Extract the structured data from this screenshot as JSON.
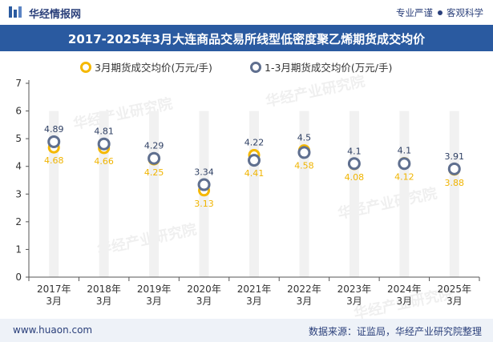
{
  "header": {
    "brand": "华经情报网",
    "tagline_left": "专业严谨",
    "tagline_right": "客观科学"
  },
  "footer": {
    "site": "www.huaon.com",
    "source": "数据来源：证监局，华经产业研究院整理"
  },
  "watermark": "华经产业研究院",
  "colors": {
    "series_a": "#f5b800",
    "series_b": "#5f6f8f",
    "title_bar": "#2a5aa0",
    "band": "#f1f1f1"
  },
  "chart_data": {
    "type": "line",
    "title": "2017-2025年3月大连商品交易所线型低密度聚乙烯期货成交均价",
    "categories": [
      [
        "2017年",
        "3月"
      ],
      [
        "2018年",
        "3月"
      ],
      [
        "2019年",
        "3月"
      ],
      [
        "2020年",
        "3月"
      ],
      [
        "2021年",
        "3月"
      ],
      [
        "2022年",
        "3月"
      ],
      [
        "2023年",
        "3月"
      ],
      [
        "2024年",
        "3月"
      ],
      [
        "2025年",
        "3月"
      ]
    ],
    "series": [
      {
        "name": "3月期货成交均价(万元/手)",
        "values": [
          4.68,
          4.66,
          4.25,
          3.13,
          4.41,
          4.58,
          4.08,
          4.12,
          3.88
        ]
      },
      {
        "name": "1-3月期货成交均价(万元/手)",
        "values": [
          4.89,
          4.81,
          4.29,
          3.34,
          4.22,
          4.5,
          4.1,
          4.1,
          3.91
        ]
      }
    ],
    "ylim": [
      0,
      7
    ],
    "yticks": [
      0,
      1,
      2,
      3,
      4,
      5,
      6,
      7
    ],
    "legend": "top-center",
    "grid": false
  }
}
